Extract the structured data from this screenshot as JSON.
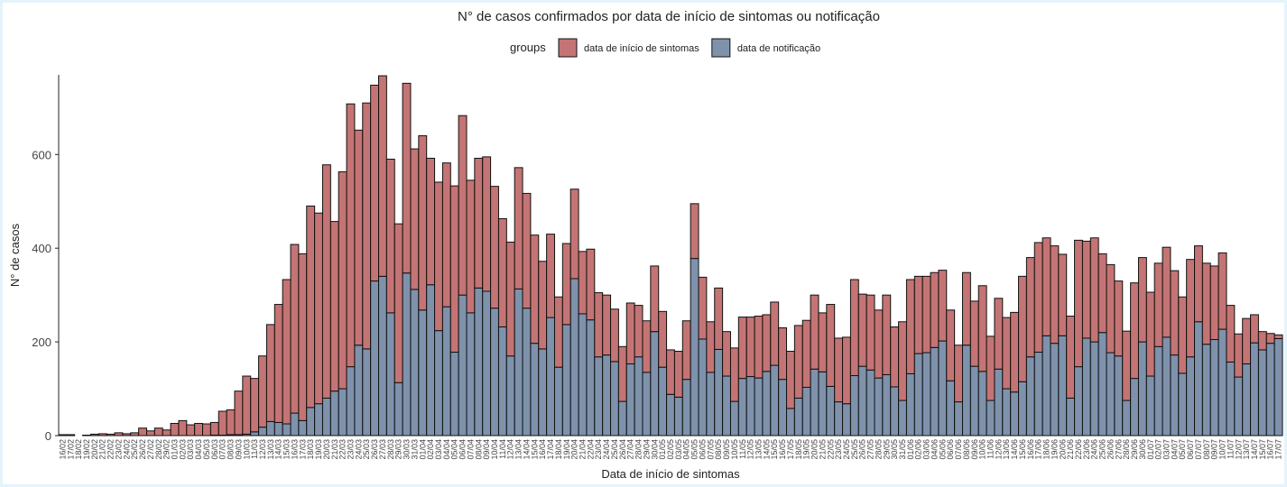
{
  "chart_data": {
    "type": "bar",
    "stacked": true,
    "title": "N° de casos confirmados por data de início de sintomas ou notificação",
    "legend_title": "groups",
    "x_label": "Data de início de sintomas",
    "y_label": "N° de casos",
    "ylim": [
      0,
      770
    ],
    "yticks": [
      0,
      200,
      400,
      600
    ],
    "grid": false,
    "legend": "top",
    "categories": [
      "16/02",
      "17/02",
      "18/02",
      "19/02",
      "20/02",
      "21/02",
      "22/02",
      "23/02",
      "24/02",
      "25/02",
      "26/02",
      "27/02",
      "28/02",
      "29/02",
      "01/03",
      "02/03",
      "03/03",
      "04/03",
      "05/03",
      "06/03",
      "07/03",
      "08/03",
      "09/03",
      "10/03",
      "11/03",
      "12/03",
      "13/03",
      "14/03",
      "15/03",
      "16/03",
      "17/03",
      "18/03",
      "19/03",
      "20/03",
      "21/03",
      "22/03",
      "23/03",
      "24/03",
      "25/03",
      "26/03",
      "27/03",
      "28/03",
      "29/03",
      "30/03",
      "31/03",
      "01/04",
      "02/04",
      "03/04",
      "04/04",
      "05/04",
      "06/04",
      "07/04",
      "08/04",
      "09/04",
      "10/04",
      "11/04",
      "12/04",
      "13/04",
      "14/04",
      "15/04",
      "16/04",
      "17/04",
      "18/04",
      "19/04",
      "20/04",
      "21/04",
      "22/04",
      "23/04",
      "24/04",
      "25/04",
      "26/04",
      "27/04",
      "28/04",
      "29/04",
      "30/04",
      "01/05",
      "02/05",
      "03/05",
      "04/05",
      "05/05",
      "06/05",
      "07/05",
      "08/05",
      "09/05",
      "10/05",
      "11/05",
      "12/05",
      "13/05",
      "14/05",
      "15/05",
      "16/05",
      "17/05",
      "18/05",
      "19/05",
      "20/05",
      "21/05",
      "22/05",
      "23/05",
      "24/05",
      "25/05",
      "26/05",
      "27/05",
      "28/05",
      "29/05",
      "30/05",
      "31/05",
      "01/06",
      "02/06",
      "03/06",
      "04/06",
      "05/06",
      "06/06",
      "07/06",
      "08/06",
      "09/06",
      "10/06",
      "11/06",
      "12/06",
      "13/06",
      "14/06",
      "15/06",
      "16/06",
      "17/06",
      "18/06",
      "19/06",
      "20/06",
      "21/06",
      "22/06",
      "23/06",
      "24/06",
      "25/06",
      "26/06",
      "27/06",
      "28/06",
      "29/06",
      "30/06",
      "01/07",
      "02/07",
      "03/07",
      "04/07",
      "05/07",
      "06/07",
      "07/07",
      "08/07",
      "09/07",
      "10/07",
      "11/07",
      "12/07",
      "13/07",
      "14/07",
      "15/07",
      "16/07",
      "17/07"
    ],
    "series": [
      {
        "name": "data de início de sintomas",
        "color": "#c47474",
        "values": [
          2,
          2,
          0,
          1,
          3,
          4,
          3,
          6,
          4,
          6,
          16,
          10,
          16,
          12,
          26,
          32,
          23,
          26,
          25,
          27,
          51,
          53,
          93,
          124,
          114,
          152,
          207,
          252,
          308,
          360,
          356,
          430,
          407,
          498,
          362,
          463,
          561,
          459,
          525,
          418,
          428,
          328,
          339,
          405,
          300,
          372,
          270,
          317,
          307,
          355,
          383,
          283,
          277,
          287,
          260,
          231,
          243,
          259,
          245,
          231,
          187,
          178,
          150,
          173,
          191,
          133,
          151,
          137,
          128,
          112,
          117,
          130,
          110,
          110,
          140,
          119,
          95,
          98,
          125,
          117,
          132,
          108,
          131,
          95,
          114,
          131,
          127,
          132,
          121,
          135,
          110,
          122,
          155,
          143,
          158,
          126,
          175,
          136,
          142,
          205,
          154,
          160,
          145,
          170,
          128,
          168,
          201,
          165,
          163,
          160,
          151,
          151,
          121,
          155,
          139,
          183,
          137,
          151,
          152,
          170,
          225,
          212,
          234,
          209,
          208,
          174,
          175,
          270,
          207,
          222,
          168,
          188,
          160,
          148,
          204,
          180,
          179,
          178,
          192,
          180,
          163,
          208,
          162,
          173,
          157,
          163,
          121,
          92,
          97,
          60,
          39,
          21,
          8
        ]
      },
      {
        "name": "data de notificação",
        "color": "#7e92ac",
        "values": [
          0,
          0,
          0,
          0,
          0,
          0,
          0,
          0,
          0,
          0,
          0,
          0,
          0,
          0,
          0,
          0,
          0,
          0,
          0,
          1,
          1,
          2,
          2,
          3,
          8,
          18,
          30,
          28,
          25,
          48,
          32,
          60,
          68,
          80,
          95,
          100,
          147,
          193,
          185,
          330,
          340,
          262,
          113,
          347,
          312,
          268,
          322,
          224,
          275,
          178,
          300,
          262,
          315,
          308,
          272,
          232,
          170,
          313,
          272,
          197,
          185,
          252,
          146,
          237,
          335,
          260,
          247,
          168,
          172,
          158,
          73,
          153,
          168,
          135,
          222,
          146,
          88,
          82,
          120,
          378,
          206,
          135,
          184,
          127,
          73,
          122,
          126,
          123,
          137,
          150,
          120,
          58,
          80,
          103,
          142,
          136,
          105,
          72,
          68,
          128,
          148,
          140,
          123,
          130,
          104,
          75,
          132,
          175,
          177,
          188,
          202,
          117,
          72,
          193,
          148,
          137,
          75,
          142,
          100,
          93,
          115,
          168,
          178,
          213,
          197,
          213,
          80,
          147,
          208,
          200,
          220,
          177,
          170,
          75,
          122,
          200,
          127,
          190,
          210,
          172,
          133,
          168,
          243,
          195,
          205,
          227,
          157,
          125,
          153,
          198,
          183,
          197,
          207
        ]
      }
    ]
  }
}
